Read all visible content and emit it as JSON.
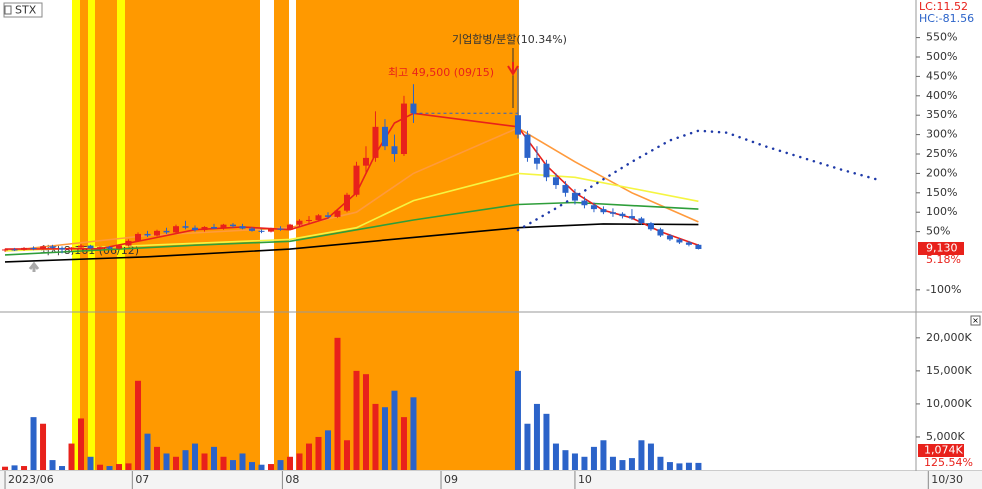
{
  "chart_data": [
    {
      "type": "candlestick",
      "title": "STX",
      "x": [
        0,
        1,
        2,
        3,
        4,
        5,
        6,
        7,
        8,
        9,
        10,
        11,
        12,
        13,
        14,
        15,
        16,
        17,
        18,
        19,
        20,
        21,
        22,
        23,
        24,
        25,
        26,
        27,
        28,
        29,
        30,
        31,
        32,
        33,
        34,
        35,
        36,
        37,
        38,
        39,
        40,
        41,
        42,
        43,
        54,
        55,
        56,
        57,
        58,
        59,
        60,
        61,
        62,
        63,
        64,
        65,
        66,
        67,
        68,
        69,
        70,
        71,
        72,
        73
      ],
      "open": [
        2,
        4,
        3,
        8,
        5,
        12,
        8,
        4,
        9,
        14,
        7,
        10,
        6,
        14,
        26,
        44,
        40,
        52,
        48,
        64,
        60,
        54,
        62,
        58,
        68,
        64,
        58,
        52,
        50,
        58,
        55,
        68,
        78,
        80,
        92,
        88,
        104,
        145,
        220,
        240,
        320,
        270,
        250,
        380,
        350,
        300,
        240,
        225,
        190,
        170,
        150,
        130,
        118,
        108,
        100,
        96,
        90,
        84,
        72,
        56,
        40,
        30,
        22,
        16
      ],
      "high": [
        6,
        8,
        10,
        12,
        14,
        16,
        12,
        10,
        18,
        16,
        12,
        13,
        16,
        30,
        48,
        52,
        55,
        60,
        68,
        78,
        66,
        64,
        70,
        70,
        72,
        70,
        62,
        56,
        60,
        64,
        70,
        82,
        90,
        95,
        100,
        108,
        150,
        230,
        270,
        360,
        340,
        300,
        400,
        430,
        470,
        310,
        270,
        235,
        200,
        180,
        160,
        140,
        125,
        115,
        110,
        100,
        108,
        88,
        75,
        60,
        44,
        34,
        26,
        18
      ],
      "low": [
        -2,
        0,
        1,
        2,
        3,
        6,
        -6,
        0,
        4,
        5,
        3,
        4,
        4,
        12,
        24,
        36,
        38,
        44,
        46,
        56,
        50,
        50,
        56,
        55,
        60,
        56,
        50,
        46,
        48,
        52,
        54,
        64,
        72,
        76,
        84,
        86,
        100,
        140,
        200,
        230,
        260,
        230,
        245,
        330,
        290,
        230,
        210,
        180,
        160,
        140,
        120,
        110,
        100,
        95,
        88,
        84,
        80,
        68,
        52,
        36,
        26,
        18,
        12,
        4
      ],
      "close": [
        4,
        3,
        8,
        5,
        12,
        8,
        4,
        9,
        14,
        7,
        10,
        6,
        14,
        26,
        44,
        40,
        52,
        48,
        64,
        60,
        54,
        62,
        58,
        68,
        64,
        58,
        52,
        50,
        58,
        55,
        68,
        78,
        80,
        92,
        88,
        104,
        145,
        220,
        240,
        320,
        270,
        250,
        380,
        355,
        300,
        240,
        225,
        190,
        170,
        150,
        130,
        118,
        108,
        100,
        96,
        90,
        84,
        72,
        56,
        40,
        30,
        22,
        16,
        5.18
      ],
      "up_color": "#e8211b",
      "down_color": "#2b63c9",
      "xlim": [
        -0.53,
        95.8
      ],
      "ylim": [
        -152,
        634
      ],
      "yticks": [
        {
          "value": 550,
          "label": "550%"
        },
        {
          "value": 500,
          "label": "500%"
        },
        {
          "value": 450,
          "label": "450%"
        },
        {
          "value": 400,
          "label": "400%"
        },
        {
          "value": 350,
          "label": "350%"
        },
        {
          "value": 300,
          "label": "300%"
        },
        {
          "value": 250,
          "label": "250%"
        },
        {
          "value": 200,
          "label": "200%"
        },
        {
          "value": 150,
          "label": "150%"
        },
        {
          "value": 100,
          "label": "100%"
        },
        {
          "value": 50,
          "label": "50%"
        },
        {
          "value": -100,
          "label": "-100%"
        }
      ],
      "lines": [
        {
          "color": "#ff9a3c",
          "x": [
            0,
            15,
            30,
            37,
            43,
            54,
            60,
            66,
            73
          ],
          "values": [
            0,
            40,
            60,
            100,
            200,
            317,
            230,
            150,
            75
          ]
        },
        {
          "color": "#f5f542",
          "x": [
            0,
            20,
            30,
            37,
            43,
            54,
            60,
            73
          ],
          "values": [
            0,
            20,
            30,
            60,
            130,
            200,
            190,
            128
          ]
        },
        {
          "color": "#2e9e3a",
          "x": [
            0,
            20,
            30,
            43,
            54,
            60,
            73
          ],
          "values": [
            -10,
            15,
            25,
            80,
            120,
            125,
            108
          ]
        },
        {
          "color": "#000000",
          "x": [
            0,
            15,
            30,
            43,
            54,
            63,
            73
          ],
          "values": [
            -28,
            -15,
            5,
            35,
            60,
            70,
            68
          ]
        },
        {
          "color": "#e8211b",
          "x": [
            0,
            10,
            15,
            20,
            25,
            30,
            34,
            37,
            39,
            41,
            43,
            54,
            57,
            60,
            63,
            66,
            69,
            73
          ],
          "values": [
            5,
            6,
            30,
            55,
            62,
            55,
            85,
            150,
            250,
            330,
            355,
            320,
            220,
            150,
            105,
            85,
            50,
            15
          ]
        },
        {
          "color": "#1f3aa8",
          "dotted": true,
          "x": [
            54,
            58,
            62,
            66,
            70,
            73,
            76,
            80,
            84,
            88,
            92
          ],
          "values": [
            54,
            110,
            170,
            230,
            285,
            310,
            305,
            270,
            240,
            210,
            183
          ]
        }
      ],
      "lc": {
        "value": 11.52,
        "label": "LC:11.52"
      },
      "hc": {
        "value": -81.56,
        "label": "HC:-81.56"
      },
      "annotation_event": "기업합병/분할(10.34%)",
      "annotation_high": "최고 49,500 (09/15)",
      "annotation_low": "최저 8,161 (06/12)",
      "current_price": {
        "value": 9130,
        "label": "9,130"
      },
      "current_change": {
        "value": 5.18,
        "label": "5.18%"
      }
    },
    {
      "type": "bar",
      "x": [
        0,
        1,
        2,
        3,
        4,
        5,
        6,
        7,
        8,
        9,
        10,
        11,
        12,
        13,
        14,
        15,
        16,
        17,
        18,
        19,
        20,
        21,
        22,
        23,
        24,
        25,
        26,
        27,
        28,
        29,
        30,
        31,
        32,
        33,
        34,
        35,
        36,
        37,
        38,
        39,
        40,
        41,
        42,
        43,
        54,
        55,
        56,
        57,
        58,
        59,
        60,
        61,
        62,
        63,
        64,
        65,
        66,
        67,
        68,
        69,
        70,
        71,
        72,
        73
      ],
      "values": [
        500,
        700,
        600,
        8000,
        7000,
        1500,
        600,
        4000,
        7800,
        2000,
        800,
        600,
        900,
        1000,
        13500,
        5500,
        3500,
        2500,
        2000,
        3000,
        4000,
        2500,
        3500,
        2000,
        1500,
        2500,
        1200,
        800,
        900,
        1500,
        2000,
        2500,
        4000,
        5000,
        6000,
        20000,
        4500,
        15000,
        14500,
        10000,
        9500,
        12000,
        8000,
        11000,
        15000,
        7000,
        10000,
        8500,
        4000,
        3000,
        2500,
        2000,
        3500,
        4500,
        2000,
        1500,
        1800,
        4500,
        4000,
        2000,
        1200,
        1000,
        1100,
        1074
      ],
      "xlim": [
        -0.53,
        95.8
      ],
      "ylim": [
        0,
        23000
      ],
      "yticks": [
        {
          "value": 5000,
          "label": "5,000K"
        },
        {
          "value": 10000,
          "label": "10,000K"
        },
        {
          "value": 15000,
          "label": "15,000K"
        },
        {
          "value": 20000,
          "label": "20,000K"
        }
      ],
      "xticks": [
        {
          "value": 0,
          "label": "2023/06"
        },
        {
          "value": 13.4,
          "label": "07"
        },
        {
          "value": 29.2,
          "label": "08"
        },
        {
          "value": 45.9,
          "label": "09"
        },
        {
          "value": 60,
          "label": "10"
        },
        {
          "value": 97.2,
          "label": "10/30"
        }
      ],
      "current_volume": {
        "value": 1074,
        "label": "1,074K"
      },
      "current_ratio": {
        "value": 125.54,
        "label": "125.54%"
      }
    }
  ]
}
